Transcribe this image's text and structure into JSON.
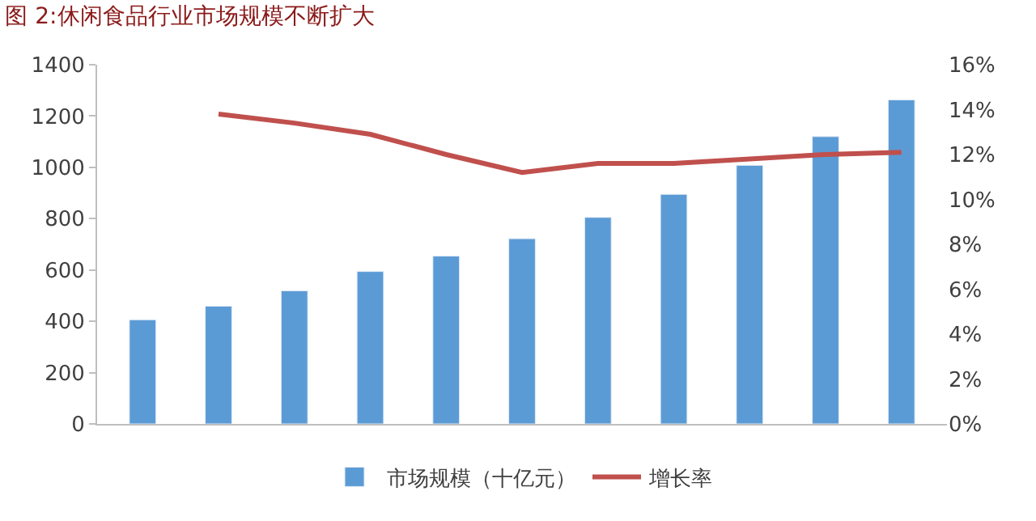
{
  "chart_data": {
    "type": "bar",
    "title": "图 2:休闲食品行业市场规模不断扩大",
    "categories": [
      null,
      null,
      null,
      null,
      null,
      null,
      null,
      null,
      null,
      null,
      null
    ],
    "series": [
      {
        "name": "市场规模（十亿元）",
        "color": "#5b9bd5",
        "values": [
          406,
          459,
          519,
          594,
          654,
          722,
          805,
          895,
          1008,
          1120,
          1263
        ]
      },
      {
        "name": "增长率",
        "type": "line",
        "axis": "y2",
        "color": "#c0504d",
        "values": [
          null,
          13.8,
          13.4,
          12.9,
          12.0,
          11.2,
          11.6,
          11.6,
          11.8,
          12.0,
          12.1
        ]
      }
    ],
    "ylim": [
      0,
      1400
    ],
    "yticks": [
      0,
      200,
      400,
      600,
      800,
      1000,
      1200,
      1400
    ],
    "y2lim": [
      0,
      16
    ],
    "y2ticks": [
      {
        "value": 0,
        "label": "0%"
      },
      {
        "value": 2,
        "label": "2%"
      },
      {
        "value": 4,
        "label": "4%"
      },
      {
        "value": 6,
        "label": "6%"
      },
      {
        "value": 8,
        "label": "8%"
      },
      {
        "value": 10,
        "label": "10%"
      },
      {
        "value": 12,
        "label": "12%"
      },
      {
        "value": 14,
        "label": "14%"
      },
      {
        "value": 16,
        "label": "16%"
      }
    ],
    "grid": false,
    "legend": "bottom",
    "marker": "none",
    "line_style": "solid"
  }
}
